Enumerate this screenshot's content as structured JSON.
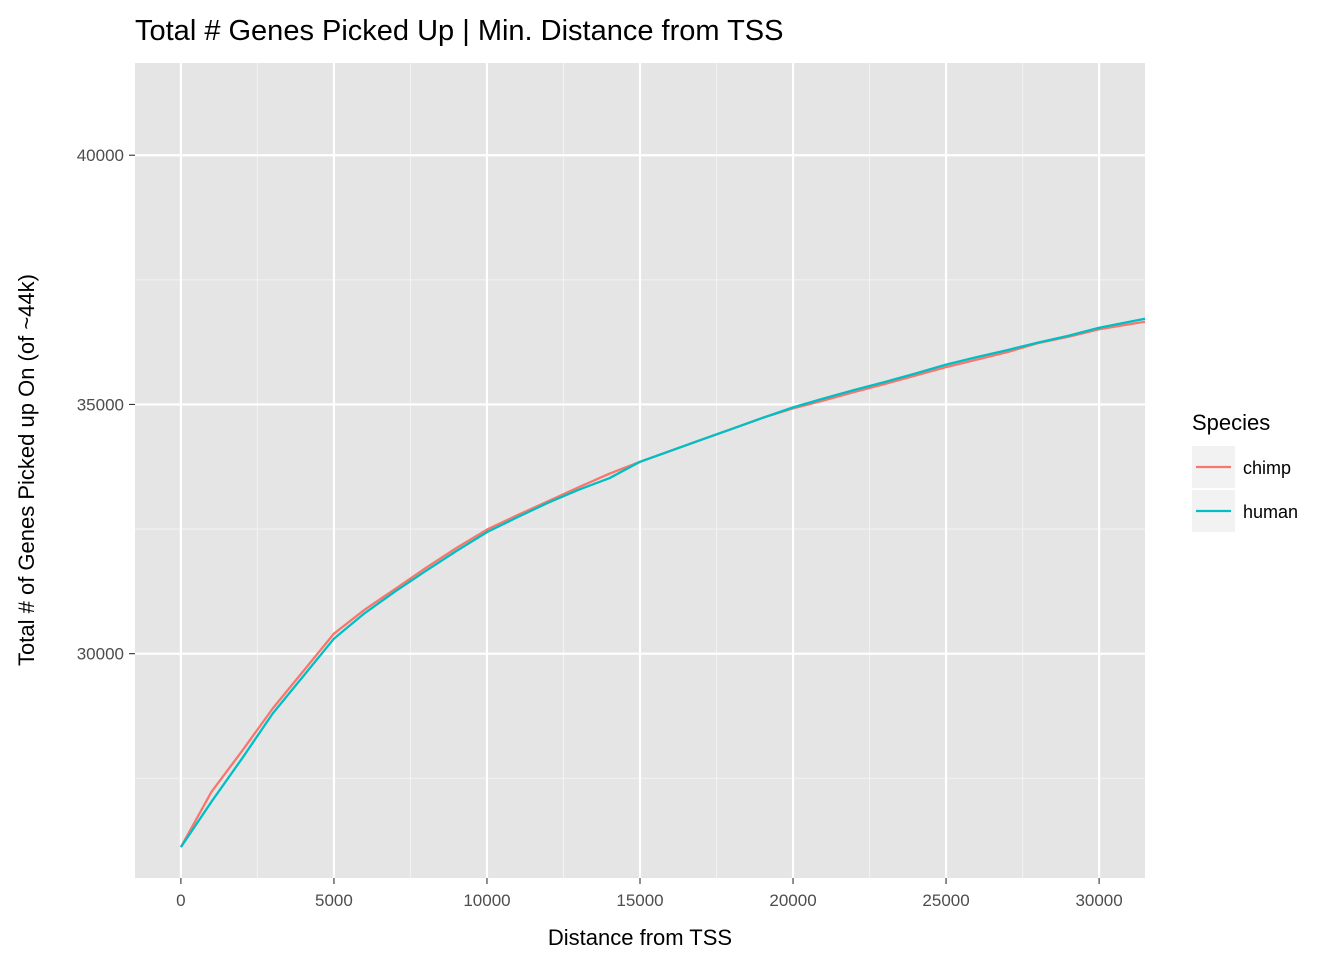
{
  "chart_data": {
    "type": "line",
    "title": "Total # Genes Picked Up | Min. Distance from TSS",
    "xlabel": "Distance from TSS",
    "ylabel": "Total # of Genes Picked up On (of ~44k)",
    "xlim": [
      -1500,
      31500
    ],
    "ylim": [
      25500,
      41850
    ],
    "x_ticks": [
      0,
      5000,
      10000,
      15000,
      20000,
      25000,
      30000
    ],
    "y_ticks": [
      30000,
      35000,
      40000
    ],
    "grid": true,
    "legend": {
      "title": "Species",
      "placement": "right"
    },
    "series": [
      {
        "name": "chimp",
        "color": "#F8766D",
        "x": [
          0,
          1000,
          2000,
          3000,
          4000,
          5000,
          6000,
          7000,
          8000,
          9000,
          10000,
          11000,
          12000,
          13000,
          14000,
          15000,
          16000,
          17000,
          18000,
          19000,
          20000,
          21000,
          22000,
          23000,
          24000,
          25000,
          26000,
          27000,
          28000,
          29000,
          30000,
          31500
        ],
        "y": [
          26120,
          27230,
          28050,
          28900,
          29650,
          30400,
          30880,
          31300,
          31720,
          32120,
          32490,
          32780,
          33060,
          33340,
          33610,
          33850,
          34070,
          34290,
          34510,
          34730,
          34920,
          35080,
          35250,
          35410,
          35580,
          35750,
          35900,
          36050,
          36230,
          36360,
          36510,
          36660
        ]
      },
      {
        "name": "human",
        "color": "#00BFC4",
        "x": [
          0,
          1000,
          2000,
          3000,
          4000,
          5000,
          6000,
          7000,
          8000,
          9000,
          10000,
          11000,
          12000,
          13000,
          14000,
          15000,
          16000,
          17000,
          18000,
          19000,
          20000,
          21000,
          22000,
          23000,
          24000,
          25000,
          26000,
          27000,
          28000,
          29000,
          30000,
          31500
        ],
        "y": [
          26120,
          27030,
          27900,
          28800,
          29550,
          30300,
          30810,
          31250,
          31660,
          32060,
          32440,
          32740,
          33030,
          33290,
          33520,
          33850,
          34070,
          34290,
          34510,
          34730,
          34940,
          35120,
          35290,
          35450,
          35620,
          35800,
          35950,
          36090,
          36240,
          36380,
          36540,
          36720
        ]
      }
    ]
  }
}
